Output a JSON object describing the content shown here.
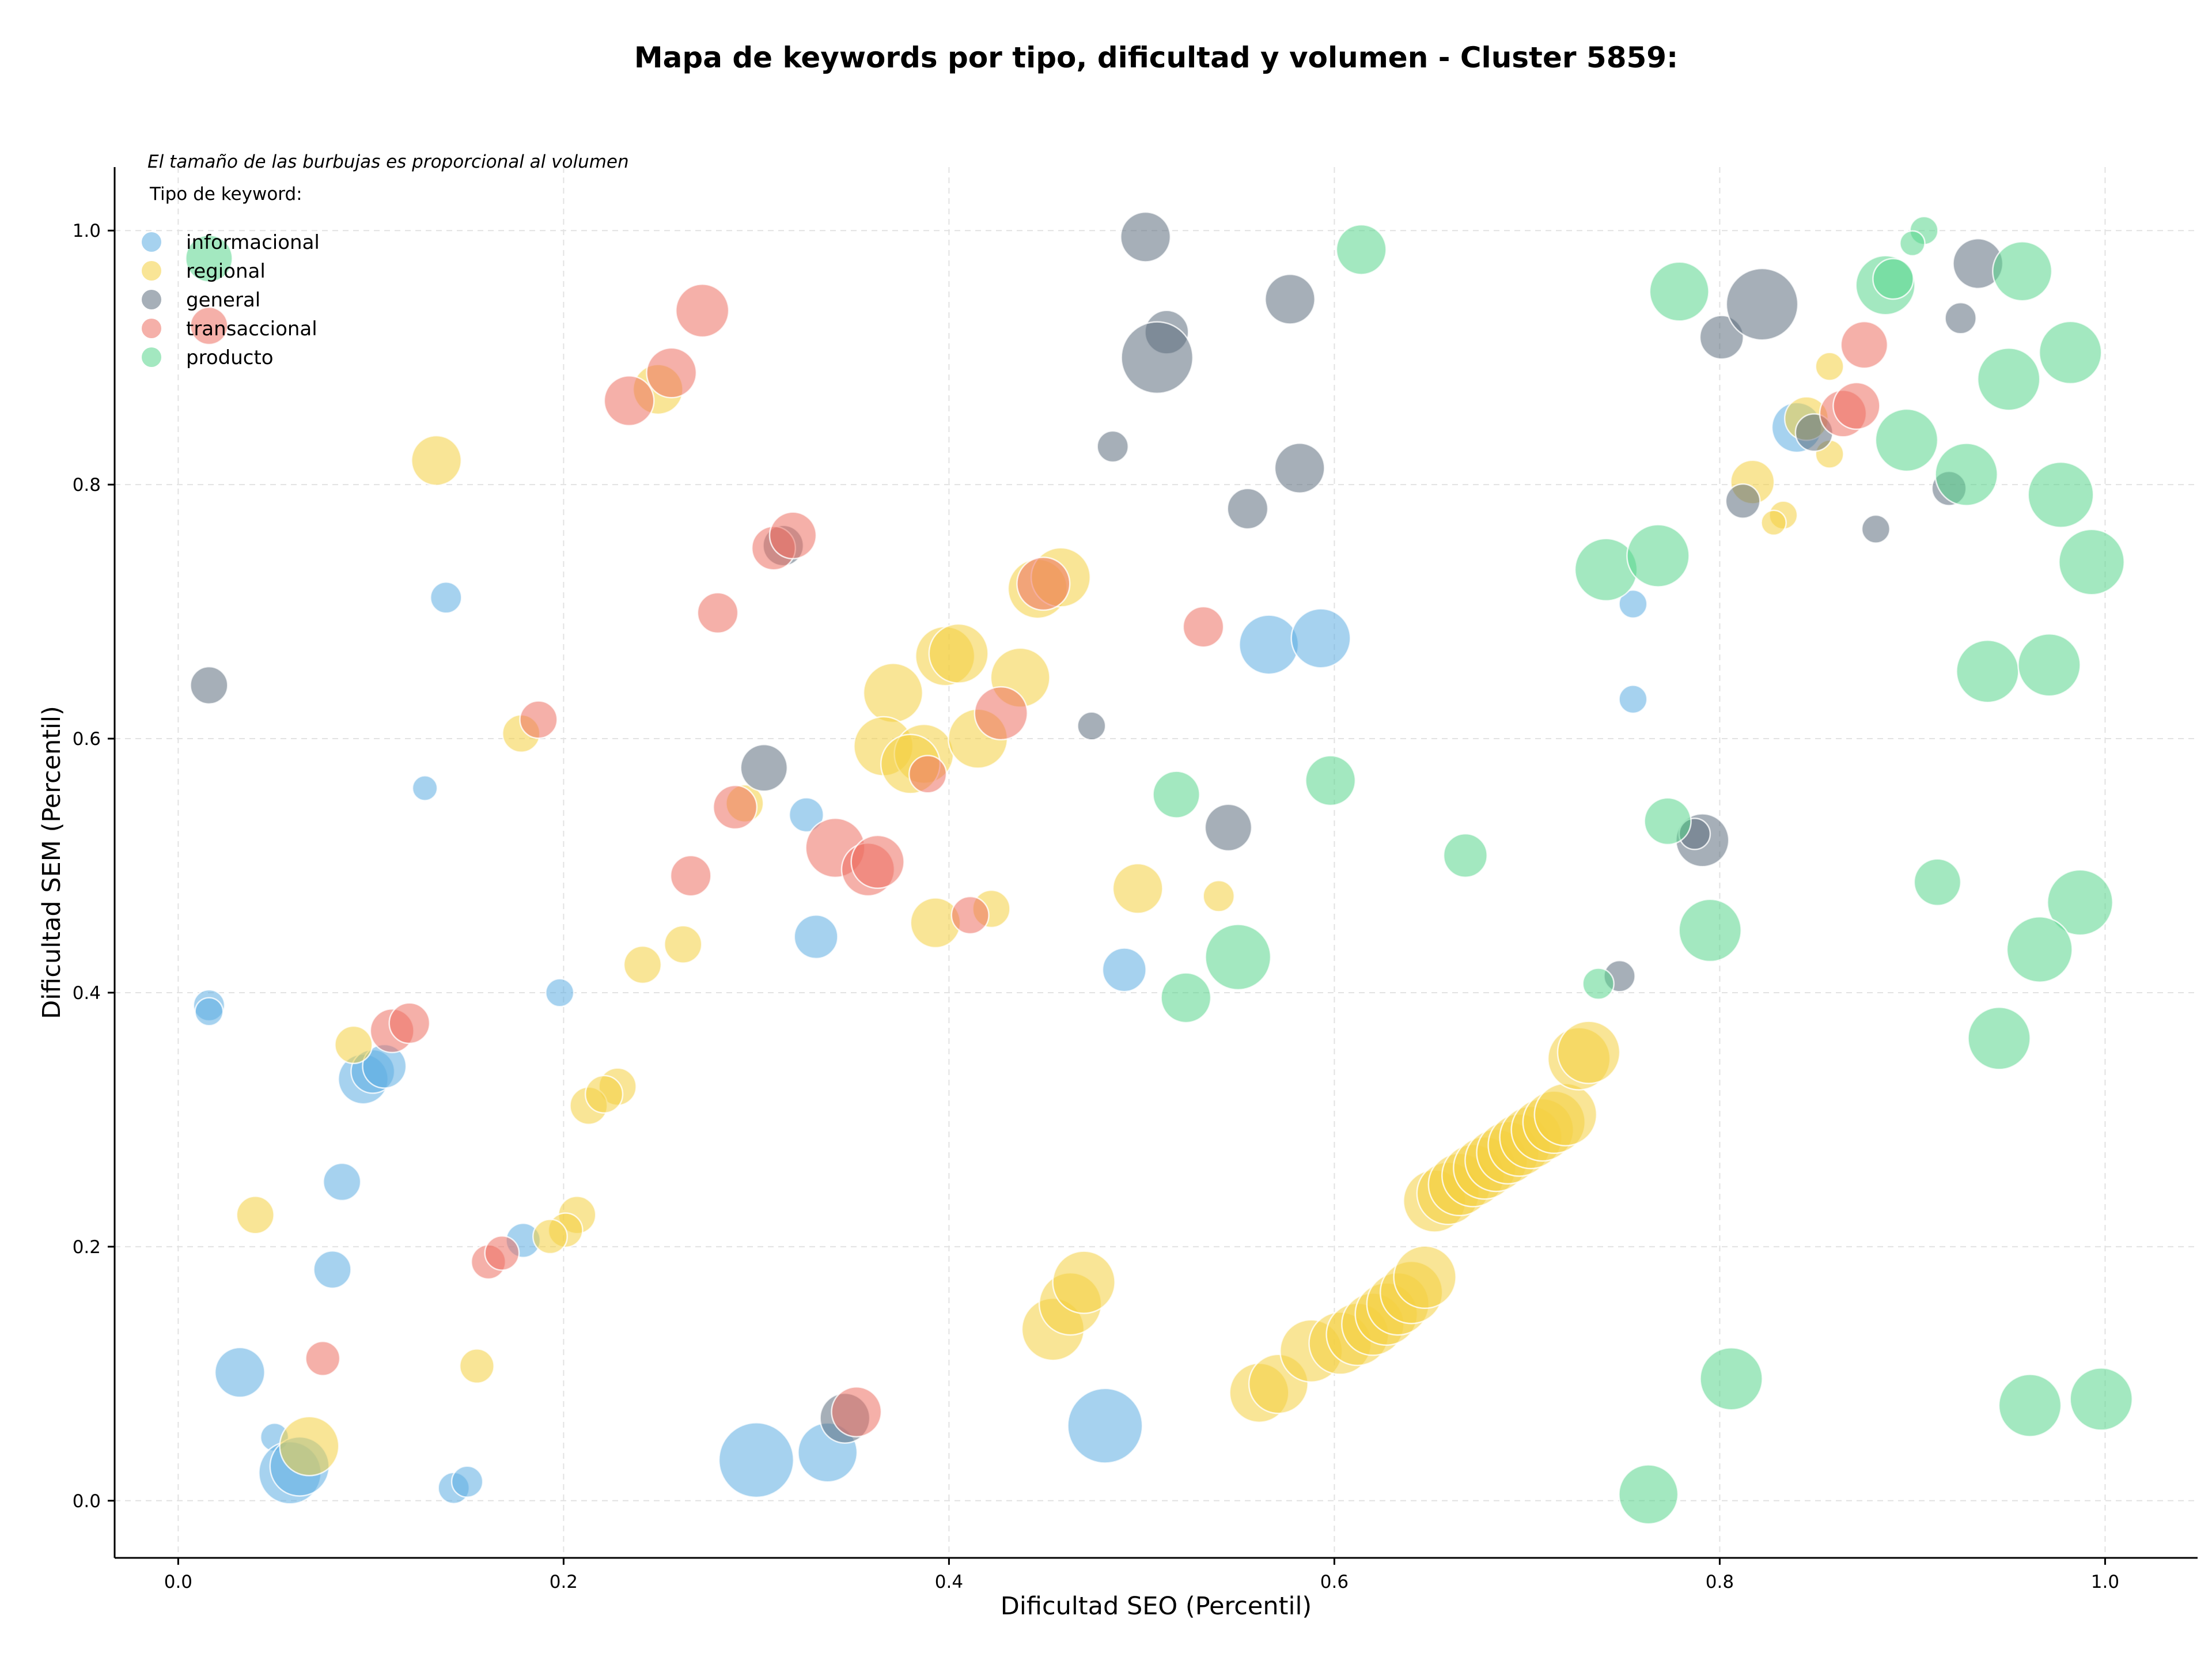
{
  "chart_data": {
    "type": "scatter",
    "title": "Mapa de keywords por tipo, dificultad y volumen - Cluster 5859:",
    "xlabel": "Dificultad SEO (Percentil)",
    "ylabel": "Dificultad SEM (Percentil)",
    "xlim": [
      -0.033,
      1.048
    ],
    "ylim": [
      -0.045,
      1.05
    ],
    "xticks": [
      "0.0",
      "0.2",
      "0.4",
      "0.6",
      "0.8",
      "1.0"
    ],
    "yticks": [
      "0.0",
      "0.2",
      "0.4",
      "0.6",
      "0.8",
      "1.0"
    ],
    "grid": true,
    "size_note": "El tamaño de las burbujas es proporcional al volumen",
    "legend_title": "Tipo de keyword:",
    "legend_position": "top-left",
    "series": [
      {
        "name": "informacional",
        "color": "#5DADE2",
        "points": [
          {
            "x": 0.139,
            "y": 0.711,
            "s": 1.0
          },
          {
            "x": 0.128,
            "y": 0.561,
            "s": 0.8
          },
          {
            "x": 0.016,
            "y": 0.39,
            "s": 1.0
          },
          {
            "x": 0.016,
            "y": 0.385,
            "s": 0.9
          },
          {
            "x": 0.198,
            "y": 0.4,
            "s": 0.9
          },
          {
            "x": 0.096,
            "y": 0.332,
            "s": 1.6
          },
          {
            "x": 0.101,
            "y": 0.338,
            "s": 1.4
          },
          {
            "x": 0.107,
            "y": 0.342,
            "s": 1.4
          },
          {
            "x": 0.085,
            "y": 0.251,
            "s": 1.2
          },
          {
            "x": 0.08,
            "y": 0.182,
            "s": 1.2
          },
          {
            "x": 0.179,
            "y": 0.205,
            "s": 1.1
          },
          {
            "x": 0.032,
            "y": 0.101,
            "s": 1.6
          },
          {
            "x": 0.05,
            "y": 0.05,
            "s": 0.9
          },
          {
            "x": 0.058,
            "y": 0.022,
            "s": 2.0
          },
          {
            "x": 0.063,
            "y": 0.027,
            "s": 1.9
          },
          {
            "x": 0.143,
            "y": 0.01,
            "s": 1.0
          },
          {
            "x": 0.15,
            "y": 0.015,
            "s": 1.0
          },
          {
            "x": 0.3,
            "y": 0.032,
            "s": 2.4
          },
          {
            "x": 0.337,
            "y": 0.038,
            "s": 1.9
          },
          {
            "x": 0.481,
            "y": 0.059,
            "s": 2.4
          },
          {
            "x": 0.326,
            "y": 0.54,
            "s": 1.1
          },
          {
            "x": 0.331,
            "y": 0.444,
            "s": 1.4
          },
          {
            "x": 0.491,
            "y": 0.418,
            "s": 1.4
          },
          {
            "x": 0.566,
            "y": 0.674,
            "s": 1.9
          },
          {
            "x": 0.593,
            "y": 0.679,
            "s": 1.9
          },
          {
            "x": 0.755,
            "y": 0.706,
            "s": 0.9
          },
          {
            "x": 0.755,
            "y": 0.631,
            "s": 0.9
          },
          {
            "x": 0.84,
            "y": 0.845,
            "s": 1.6
          }
        ]
      },
      {
        "name": "regional",
        "color": "#F4D03F",
        "points": [
          {
            "x": 0.134,
            "y": 0.819,
            "s": 1.6
          },
          {
            "x": 0.178,
            "y": 0.604,
            "s": 1.2
          },
          {
            "x": 0.249,
            "y": 0.875,
            "s": 1.6
          },
          {
            "x": 0.294,
            "y": 0.549,
            "s": 1.2
          },
          {
            "x": 0.241,
            "y": 0.422,
            "s": 1.2
          },
          {
            "x": 0.262,
            "y": 0.438,
            "s": 1.2
          },
          {
            "x": 0.228,
            "y": 0.326,
            "s": 1.2
          },
          {
            "x": 0.213,
            "y": 0.311,
            "s": 1.2
          },
          {
            "x": 0.221,
            "y": 0.32,
            "s": 1.2
          },
          {
            "x": 0.207,
            "y": 0.225,
            "s": 1.2
          },
          {
            "x": 0.201,
            "y": 0.213,
            "s": 1.1
          },
          {
            "x": 0.193,
            "y": 0.208,
            "s": 1.1
          },
          {
            "x": 0.091,
            "y": 0.359,
            "s": 1.2
          },
          {
            "x": 0.04,
            "y": 0.225,
            "s": 1.2
          },
          {
            "x": 0.068,
            "y": 0.043,
            "s": 1.9
          },
          {
            "x": 0.155,
            "y": 0.106,
            "s": 1.1
          },
          {
            "x": 0.371,
            "y": 0.636,
            "s": 1.9
          },
          {
            "x": 0.366,
            "y": 0.594,
            "s": 1.9
          },
          {
            "x": 0.387,
            "y": 0.588,
            "s": 1.9
          },
          {
            "x": 0.38,
            "y": 0.58,
            "s": 1.9
          },
          {
            "x": 0.398,
            "y": 0.665,
            "s": 1.9
          },
          {
            "x": 0.405,
            "y": 0.667,
            "s": 1.9
          },
          {
            "x": 0.415,
            "y": 0.6,
            "s": 1.9
          },
          {
            "x": 0.437,
            "y": 0.648,
            "s": 1.9
          },
          {
            "x": 0.446,
            "y": 0.718,
            "s": 1.9
          },
          {
            "x": 0.458,
            "y": 0.727,
            "s": 1.9
          },
          {
            "x": 0.393,
            "y": 0.455,
            "s": 1.6
          },
          {
            "x": 0.422,
            "y": 0.466,
            "s": 1.2
          },
          {
            "x": 0.498,
            "y": 0.482,
            "s": 1.6
          },
          {
            "x": 0.54,
            "y": 0.476,
            "s": 1.0
          },
          {
            "x": 0.454,
            "y": 0.135,
            "s": 2.0
          },
          {
            "x": 0.463,
            "y": 0.155,
            "s": 2.0
          },
          {
            "x": 0.47,
            "y": 0.172,
            "s": 2.0
          },
          {
            "x": 0.561,
            "y": 0.085,
            "s": 1.9
          },
          {
            "x": 0.571,
            "y": 0.092,
            "s": 1.9
          },
          {
            "x": 0.588,
            "y": 0.118,
            "s": 2.0
          },
          {
            "x": 0.603,
            "y": 0.124,
            "s": 2.0
          },
          {
            "x": 0.612,
            "y": 0.131,
            "s": 2.0
          },
          {
            "x": 0.62,
            "y": 0.139,
            "s": 2.0
          },
          {
            "x": 0.627,
            "y": 0.147,
            "s": 2.0
          },
          {
            "x": 0.633,
            "y": 0.155,
            "s": 2.0
          },
          {
            "x": 0.64,
            "y": 0.164,
            "s": 2.0
          },
          {
            "x": 0.647,
            "y": 0.176,
            "s": 2.0
          },
          {
            "x": 0.652,
            "y": 0.236,
            "s": 2.0
          },
          {
            "x": 0.659,
            "y": 0.242,
            "s": 2.0
          },
          {
            "x": 0.665,
            "y": 0.249,
            "s": 2.0
          },
          {
            "x": 0.672,
            "y": 0.256,
            "s": 2.0
          },
          {
            "x": 0.678,
            "y": 0.262,
            "s": 2.0
          },
          {
            "x": 0.684,
            "y": 0.268,
            "s": 2.0
          },
          {
            "x": 0.69,
            "y": 0.274,
            "s": 2.0
          },
          {
            "x": 0.696,
            "y": 0.28,
            "s": 2.0
          },
          {
            "x": 0.702,
            "y": 0.286,
            "s": 2.0
          },
          {
            "x": 0.708,
            "y": 0.292,
            "s": 2.0
          },
          {
            "x": 0.714,
            "y": 0.298,
            "s": 2.0
          },
          {
            "x": 0.72,
            "y": 0.304,
            "s": 2.0
          },
          {
            "x": 0.727,
            "y": 0.348,
            "s": 2.0
          },
          {
            "x": 0.732,
            "y": 0.353,
            "s": 2.0
          },
          {
            "x": 0.817,
            "y": 0.802,
            "s": 1.4
          },
          {
            "x": 0.845,
            "y": 0.852,
            "s": 1.4
          },
          {
            "x": 0.857,
            "y": 0.893,
            "s": 0.9
          },
          {
            "x": 0.857,
            "y": 0.824,
            "s": 0.9
          },
          {
            "x": 0.833,
            "y": 0.776,
            "s": 0.9
          },
          {
            "x": 0.828,
            "y": 0.77,
            "s": 0.8
          }
        ]
      },
      {
        "name": "general",
        "color": "#5D6D7E",
        "points": [
          {
            "x": 0.016,
            "y": 0.642,
            "s": 1.2
          },
          {
            "x": 0.502,
            "y": 0.995,
            "s": 1.6
          },
          {
            "x": 0.513,
            "y": 0.92,
            "s": 1.4
          },
          {
            "x": 0.508,
            "y": 0.9,
            "s": 2.3
          },
          {
            "x": 0.577,
            "y": 0.946,
            "s": 1.6
          },
          {
            "x": 0.582,
            "y": 0.813,
            "s": 1.6
          },
          {
            "x": 0.555,
            "y": 0.781,
            "s": 1.3
          },
          {
            "x": 0.485,
            "y": 0.83,
            "s": 1.0
          },
          {
            "x": 0.474,
            "y": 0.61,
            "s": 0.9
          },
          {
            "x": 0.545,
            "y": 0.53,
            "s": 1.5
          },
          {
            "x": 0.304,
            "y": 0.577,
            "s": 1.5
          },
          {
            "x": 0.314,
            "y": 0.752,
            "s": 1.3
          },
          {
            "x": 0.346,
            "y": 0.065,
            "s": 1.6
          },
          {
            "x": 0.801,
            "y": 0.916,
            "s": 1.4
          },
          {
            "x": 0.822,
            "y": 0.942,
            "s": 2.3
          },
          {
            "x": 0.934,
            "y": 0.974,
            "s": 1.6
          },
          {
            "x": 0.925,
            "y": 0.931,
            "s": 1.0
          },
          {
            "x": 0.812,
            "y": 0.787,
            "s": 1.1
          },
          {
            "x": 0.849,
            "y": 0.841,
            "s": 1.2
          },
          {
            "x": 0.881,
            "y": 0.765,
            "s": 0.9
          },
          {
            "x": 0.919,
            "y": 0.797,
            "s": 1.1
          },
          {
            "x": 0.791,
            "y": 0.52,
            "s": 1.7
          },
          {
            "x": 0.787,
            "y": 0.525,
            "s": 1.0
          },
          {
            "x": 0.748,
            "y": 0.413,
            "s": 1.0
          }
        ]
      },
      {
        "name": "transaccional",
        "color": "#EC7063",
        "points": [
          {
            "x": 0.016,
            "y": 0.925,
            "s": 1.2
          },
          {
            "x": 0.234,
            "y": 0.866,
            "s": 1.6
          },
          {
            "x": 0.256,
            "y": 0.888,
            "s": 1.6
          },
          {
            "x": 0.272,
            "y": 0.937,
            "s": 1.7
          },
          {
            "x": 0.309,
            "y": 0.75,
            "s": 1.4
          },
          {
            "x": 0.319,
            "y": 0.76,
            "s": 1.5
          },
          {
            "x": 0.187,
            "y": 0.615,
            "s": 1.2
          },
          {
            "x": 0.289,
            "y": 0.546,
            "s": 1.4
          },
          {
            "x": 0.266,
            "y": 0.492,
            "s": 1.3
          },
          {
            "x": 0.341,
            "y": 0.514,
            "s": 1.9
          },
          {
            "x": 0.358,
            "y": 0.497,
            "s": 1.7
          },
          {
            "x": 0.363,
            "y": 0.503,
            "s": 1.7
          },
          {
            "x": 0.389,
            "y": 0.572,
            "s": 1.2
          },
          {
            "x": 0.411,
            "y": 0.461,
            "s": 1.2
          },
          {
            "x": 0.427,
            "y": 0.62,
            "s": 1.7
          },
          {
            "x": 0.449,
            "y": 0.722,
            "s": 1.7
          },
          {
            "x": 0.28,
            "y": 0.699,
            "s": 1.3
          },
          {
            "x": 0.532,
            "y": 0.688,
            "s": 1.3
          },
          {
            "x": 0.111,
            "y": 0.37,
            "s": 1.4
          },
          {
            "x": 0.12,
            "y": 0.376,
            "s": 1.3
          },
          {
            "x": 0.161,
            "y": 0.188,
            "s": 1.1
          },
          {
            "x": 0.168,
            "y": 0.195,
            "s": 1.1
          },
          {
            "x": 0.075,
            "y": 0.112,
            "s": 1.1
          },
          {
            "x": 0.352,
            "y": 0.07,
            "s": 1.6
          },
          {
            "x": 0.875,
            "y": 0.91,
            "s": 1.5
          },
          {
            "x": 0.864,
            "y": 0.856,
            "s": 1.5
          },
          {
            "x": 0.871,
            "y": 0.862,
            "s": 1.5
          }
        ]
      },
      {
        "name": "producto",
        "color": "#58D68D",
        "points": [
          {
            "x": 0.016,
            "y": 0.978,
            "s": 1.5
          },
          {
            "x": 0.614,
            "y": 0.985,
            "s": 1.6
          },
          {
            "x": 0.779,
            "y": 0.952,
            "s": 1.9
          },
          {
            "x": 0.886,
            "y": 0.957,
            "s": 1.9
          },
          {
            "x": 0.89,
            "y": 0.962,
            "s": 1.3
          },
          {
            "x": 0.906,
            "y": 1.0,
            "s": 0.9
          },
          {
            "x": 0.9,
            "y": 0.99,
            "s": 0.8
          },
          {
            "x": 0.957,
            "y": 0.968,
            "s": 1.9
          },
          {
            "x": 0.982,
            "y": 0.904,
            "s": 2.0
          },
          {
            "x": 0.95,
            "y": 0.883,
            "s": 2.0
          },
          {
            "x": 0.897,
            "y": 0.835,
            "s": 2.0
          },
          {
            "x": 0.928,
            "y": 0.808,
            "s": 2.0
          },
          {
            "x": 0.977,
            "y": 0.792,
            "s": 2.1
          },
          {
            "x": 0.993,
            "y": 0.739,
            "s": 2.1
          },
          {
            "x": 0.741,
            "y": 0.733,
            "s": 2.0
          },
          {
            "x": 0.768,
            "y": 0.744,
            "s": 2.0
          },
          {
            "x": 0.939,
            "y": 0.653,
            "s": 2.0
          },
          {
            "x": 0.971,
            "y": 0.658,
            "s": 2.0
          },
          {
            "x": 0.598,
            "y": 0.567,
            "s": 1.6
          },
          {
            "x": 0.518,
            "y": 0.556,
            "s": 1.5
          },
          {
            "x": 0.668,
            "y": 0.508,
            "s": 1.4
          },
          {
            "x": 0.773,
            "y": 0.535,
            "s": 1.5
          },
          {
            "x": 0.913,
            "y": 0.487,
            "s": 1.5
          },
          {
            "x": 0.987,
            "y": 0.471,
            "s": 2.1
          },
          {
            "x": 0.966,
            "y": 0.434,
            "s": 2.1
          },
          {
            "x": 0.795,
            "y": 0.449,
            "s": 2.0
          },
          {
            "x": 0.55,
            "y": 0.428,
            "s": 2.1
          },
          {
            "x": 0.523,
            "y": 0.396,
            "s": 1.6
          },
          {
            "x": 0.737,
            "y": 0.407,
            "s": 1.0
          },
          {
            "x": 0.945,
            "y": 0.364,
            "s": 2.0
          },
          {
            "x": 0.806,
            "y": 0.096,
            "s": 2.0
          },
          {
            "x": 0.961,
            "y": 0.075,
            "s": 2.0
          },
          {
            "x": 0.998,
            "y": 0.08,
            "s": 2.0
          },
          {
            "x": 0.763,
            "y": 0.005,
            "s": 1.9
          }
        ]
      }
    ]
  }
}
